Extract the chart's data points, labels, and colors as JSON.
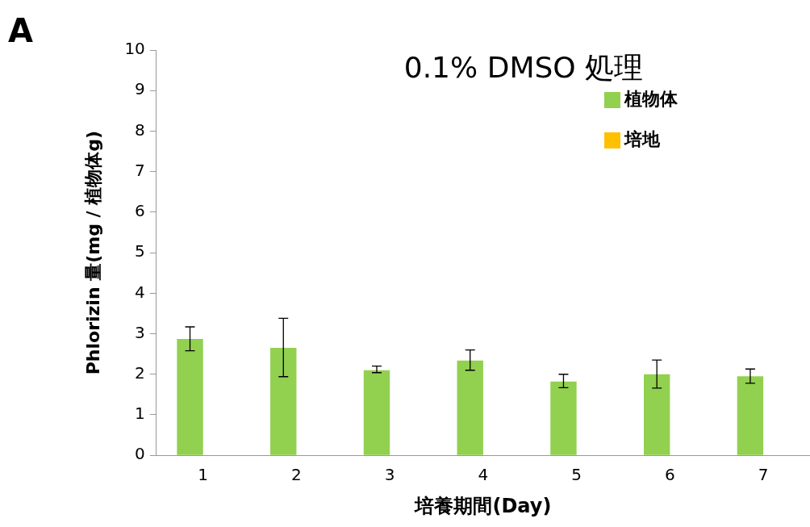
{
  "chart_data": {
    "type": "bar",
    "title": "0.1% DMSO 処理",
    "xlabel": "培養期間(Day)",
    "ylabel": "Phlorizin 量(mg / 植物体g)",
    "annotations": [
      "A"
    ],
    "categories": [
      "1",
      "2",
      "3",
      "4",
      "5",
      "6",
      "7"
    ],
    "series": [
      {
        "name": "植物体",
        "color": "#92d050",
        "values": [
          2.87,
          2.65,
          2.1,
          2.34,
          1.82,
          2.0,
          1.95
        ],
        "errors": [
          [
            2.58,
            3.17
          ],
          [
            1.94,
            3.38
          ],
          [
            2.04,
            2.2
          ],
          [
            2.1,
            2.6
          ],
          [
            1.67,
            2.0
          ],
          [
            1.66,
            2.35
          ],
          [
            1.78,
            2.13
          ]
        ]
      },
      {
        "name": "培地",
        "color": "#ffc000",
        "values": [
          0,
          0,
          0,
          0,
          0,
          0,
          0
        ]
      }
    ],
    "ylim": [
      0,
      10
    ],
    "yticks": [
      0,
      1,
      2,
      3,
      4,
      5,
      6,
      7,
      8,
      9,
      10
    ],
    "legend": "top right",
    "grid": false
  }
}
